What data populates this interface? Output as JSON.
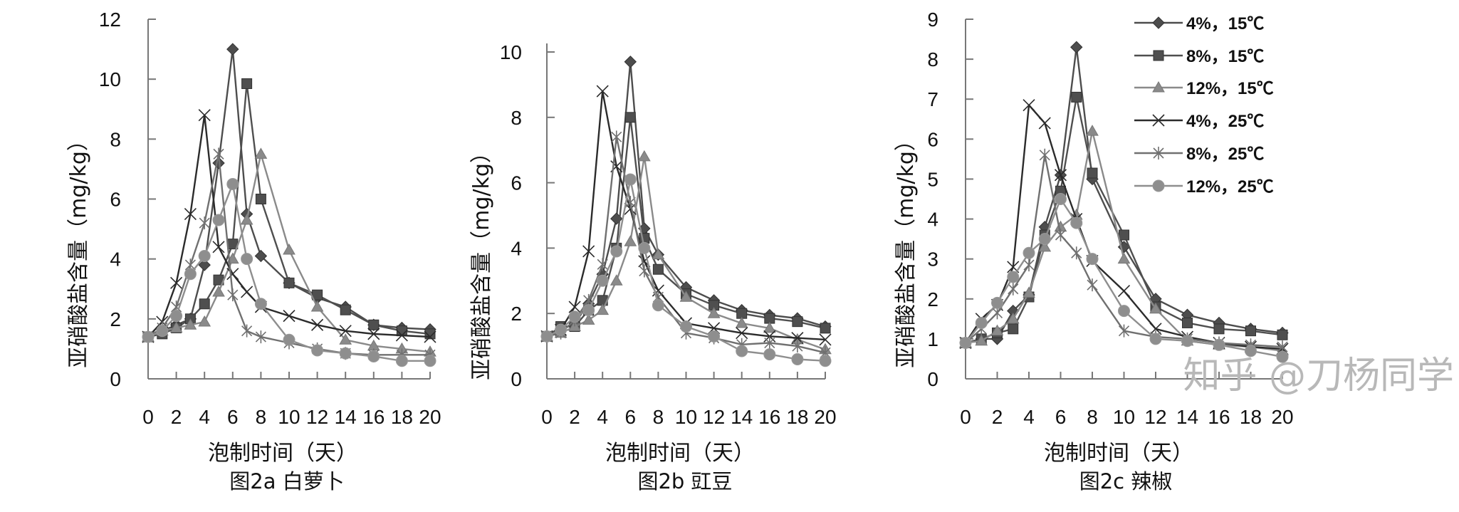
{
  "watermark": "知乎 @刀杨同学",
  "legend": {
    "placement": "top-right of figure 2c",
    "entries": [
      "4%，15℃",
      "8%，15℃",
      "12%，15℃",
      "4%，25℃",
      "8%，25℃",
      "12%，25℃"
    ]
  },
  "series_style": [
    {
      "marker": "diamond",
      "color": "#4d4d4d"
    },
    {
      "marker": "square",
      "color": "#4f4f4f"
    },
    {
      "marker": "triangle",
      "color": "#8a8a8a"
    },
    {
      "marker": "x",
      "color": "#2b2b2b"
    },
    {
      "marker": "asterisk",
      "color": "#707070"
    },
    {
      "marker": "circle",
      "color": "#8e8e8e"
    }
  ],
  "chart_data": [
    {
      "type": "line",
      "caption": "图2a 白萝卜",
      "xlabel": "泡制时间（天）",
      "ylabel": "亚硝酸盐含量（mg/kg）",
      "xlim": [
        0,
        20
      ],
      "ylim": [
        0,
        12
      ],
      "xticks": [
        0,
        2,
        4,
        6,
        8,
        10,
        12,
        14,
        16,
        18,
        20
      ],
      "yticks": [
        0,
        2,
        4,
        6,
        8,
        10,
        12
      ],
      "grid": false,
      "x": [
        0,
        1,
        2,
        3,
        4,
        5,
        6,
        7,
        8,
        10,
        12,
        14,
        16,
        18,
        20
      ],
      "series": [
        {
          "name": "4%，15℃",
          "values": [
            1.4,
            1.6,
            1.8,
            2.0,
            3.8,
            7.2,
            11.0,
            5.5,
            4.1,
            3.2,
            2.7,
            2.4,
            1.8,
            1.7,
            1.65
          ]
        },
        {
          "name": "8%，15℃",
          "values": [
            1.4,
            1.5,
            1.7,
            2.0,
            2.5,
            3.3,
            4.5,
            9.85,
            6.0,
            3.2,
            2.8,
            2.3,
            1.8,
            1.6,
            1.5
          ]
        },
        {
          "name": "12%，15℃",
          "values": [
            1.4,
            1.6,
            1.7,
            1.8,
            1.9,
            2.9,
            4.0,
            5.3,
            7.5,
            4.3,
            2.4,
            1.3,
            1.1,
            1.0,
            0.9
          ]
        },
        {
          "name": "4%，25℃",
          "values": [
            1.4,
            1.9,
            3.2,
            5.5,
            8.8,
            4.4,
            3.5,
            2.9,
            2.4,
            2.1,
            1.8,
            1.6,
            1.5,
            1.45,
            1.4
          ]
        },
        {
          "name": "8%，25℃",
          "values": [
            1.4,
            1.7,
            2.4,
            3.8,
            5.2,
            7.5,
            2.8,
            1.6,
            1.4,
            1.2,
            1.0,
            0.85,
            0.8,
            0.8,
            0.8
          ]
        },
        {
          "name": "12%，25℃",
          "values": [
            1.4,
            1.6,
            2.1,
            3.5,
            4.1,
            5.3,
            6.5,
            4.0,
            2.5,
            1.3,
            0.95,
            0.85,
            0.75,
            0.6,
            0.6
          ]
        }
      ]
    },
    {
      "type": "line",
      "caption": "图2b 豇豆",
      "xlabel": "泡制时间（天）",
      "ylabel": "亚硝酸盐含量（mg/kg）",
      "xlim": [
        0,
        20
      ],
      "ylim": [
        0,
        10
      ],
      "xticks": [
        0,
        2,
        4,
        6,
        8,
        10,
        12,
        14,
        16,
        18,
        20
      ],
      "yticks": [
        0,
        2,
        4,
        6,
        8,
        10
      ],
      "grid": false,
      "x": [
        0,
        1,
        2,
        3,
        4,
        5,
        6,
        7,
        8,
        10,
        12,
        14,
        16,
        18,
        20
      ],
      "series": [
        {
          "name": "4%，15℃",
          "values": [
            1.3,
            1.5,
            1.7,
            2.3,
            3.2,
            4.9,
            9.7,
            4.6,
            3.8,
            2.8,
            2.4,
            2.1,
            1.95,
            1.85,
            1.6
          ]
        },
        {
          "name": "8%，15℃",
          "values": [
            1.3,
            1.6,
            1.6,
            2.1,
            2.4,
            4.0,
            8.0,
            4.3,
            3.35,
            2.6,
            2.25,
            2.0,
            1.85,
            1.75,
            1.55
          ]
        },
        {
          "name": "12%，15℃",
          "values": [
            1.3,
            1.4,
            1.6,
            1.8,
            2.1,
            3.0,
            4.2,
            6.8,
            3.8,
            2.5,
            2.0,
            1.7,
            1.55,
            1.2,
            0.9
          ]
        },
        {
          "name": "4%，25℃",
          "values": [
            1.3,
            1.5,
            2.2,
            3.9,
            8.8,
            6.5,
            5.2,
            3.6,
            2.7,
            1.7,
            1.55,
            1.4,
            1.3,
            1.25,
            1.2
          ]
        },
        {
          "name": "8%，25℃",
          "values": [
            1.3,
            1.4,
            1.8,
            2.4,
            3.5,
            7.4,
            5.4,
            3.3,
            2.5,
            1.4,
            1.25,
            1.05,
            1.1,
            1.0,
            0.8
          ]
        },
        {
          "name": "12%，25℃",
          "values": [
            1.3,
            1.5,
            1.9,
            2.1,
            3.0,
            3.9,
            6.1,
            4.0,
            2.25,
            1.6,
            1.3,
            0.85,
            0.75,
            0.6,
            0.55
          ]
        }
      ]
    },
    {
      "type": "line",
      "caption": "图2c 辣椒",
      "xlabel": "泡制时间（天）",
      "ylabel": "亚硝酸盐含量（mg/kg）",
      "xlim": [
        0,
        20
      ],
      "ylim": [
        0,
        9
      ],
      "xticks": [
        0,
        2,
        4,
        6,
        8,
        10,
        12,
        14,
        16,
        18,
        20
      ],
      "yticks": [
        0,
        1,
        2,
        3,
        4,
        5,
        6,
        7,
        8,
        9
      ],
      "grid": false,
      "x": [
        0,
        1,
        2,
        3,
        4,
        5,
        6,
        7,
        8,
        10,
        12,
        14,
        16,
        18,
        20
      ],
      "series": [
        {
          "name": "4%，15℃",
          "values": [
            0.9,
            1.0,
            1.0,
            1.7,
            2.1,
            3.8,
            5.1,
            8.3,
            5.0,
            3.3,
            2.0,
            1.6,
            1.4,
            1.25,
            1.15
          ]
        },
        {
          "name": "8%，15℃",
          "values": [
            0.9,
            1.0,
            1.15,
            1.25,
            2.05,
            3.6,
            4.7,
            7.05,
            5.15,
            3.6,
            1.8,
            1.4,
            1.25,
            1.2,
            1.1
          ]
        },
        {
          "name": "12%，15℃",
          "values": [
            0.9,
            0.95,
            1.2,
            1.5,
            2.15,
            3.3,
            3.8,
            4.1,
            6.2,
            3.0,
            1.75,
            0.95,
            0.85,
            0.8,
            0.7
          ]
        },
        {
          "name": "4%，25℃",
          "values": [
            0.9,
            1.5,
            1.85,
            2.8,
            6.85,
            6.4,
            5.1,
            4.0,
            2.95,
            2.2,
            1.25,
            1.05,
            0.9,
            0.8,
            0.75
          ]
        },
        {
          "name": "8%，25℃",
          "values": [
            0.9,
            1.25,
            1.65,
            2.25,
            2.85,
            5.6,
            3.6,
            3.15,
            2.35,
            1.2,
            1.05,
            1.0,
            0.9,
            0.85,
            0.8
          ]
        },
        {
          "name": "12%，25℃",
          "values": [
            0.9,
            1.4,
            1.9,
            2.55,
            3.15,
            3.5,
            4.5,
            3.9,
            3.0,
            1.7,
            1.0,
            0.95,
            0.85,
            0.7,
            0.55
          ]
        }
      ]
    }
  ]
}
